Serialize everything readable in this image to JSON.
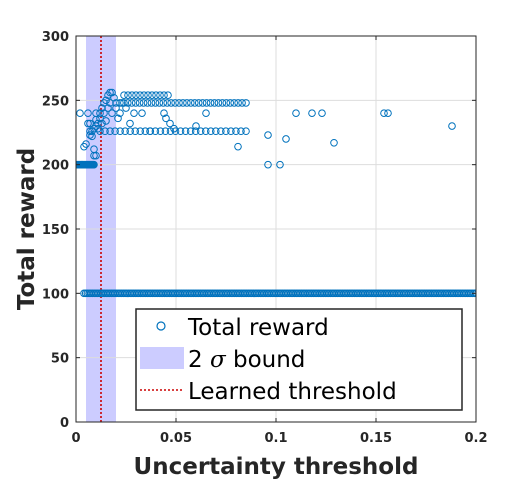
{
  "chart_data": {
    "type": "scatter",
    "xlabel": "Uncertainty threshold",
    "ylabel": "Total reward",
    "xlim": [
      0,
      0.2
    ],
    "ylim": [
      0,
      300
    ],
    "xticks": [
      0,
      0.05,
      0.1,
      0.15,
      0.2
    ],
    "xtick_labels": [
      "0",
      "0.05",
      "0.1",
      "0.15",
      "0.2"
    ],
    "yticks": [
      0,
      50,
      100,
      150,
      200,
      250,
      300
    ],
    "ytick_labels": [
      "0",
      "50",
      "100",
      "150",
      "200",
      "250",
      "300"
    ],
    "grid": true,
    "legend": {
      "placement": "bottom-right",
      "entries": [
        {
          "label_prefix": "Total reward",
          "label_symbol": "",
          "label_suffix": ""
        },
        {
          "label_prefix": "2 ",
          "label_symbol": "σ",
          "label_suffix": " bound"
        },
        {
          "label_prefix": "Learned threshold",
          "label_symbol": "",
          "label_suffix": ""
        }
      ]
    },
    "colors": {
      "points": "#0072BD",
      "band": "#CCCCFF",
      "threshold_line": "#CC0000",
      "grid": "#DDDDDD",
      "axes": "#262626"
    },
    "band": {
      "x_from": 0.005,
      "x_to": 0.02
    },
    "threshold": {
      "x": 0.0125
    },
    "series": [
      {
        "name": "Total reward",
        "marker": "open-circle",
        "clusters": [
          {
            "x_from": 0.0005,
            "x_to": 0.009,
            "y": 200,
            "n": 26
          },
          {
            "x_from": 0.004,
            "x_to": 0.2,
            "y": 100,
            "n": 230
          },
          {
            "x_from": 0.012,
            "x_to": 0.085,
            "y": 226,
            "n": 30
          },
          {
            "x_from": 0.02,
            "x_to": 0.085,
            "y": 248,
            "n": 34
          },
          {
            "x_from": 0.024,
            "x_to": 0.046,
            "y": 254,
            "n": 12
          }
        ],
        "points": [
          [
            0.002,
            240
          ],
          [
            0.003,
            200
          ],
          [
            0.004,
            214
          ],
          [
            0.005,
            216
          ],
          [
            0.006,
            240
          ],
          [
            0.006,
            232
          ],
          [
            0.007,
            232
          ],
          [
            0.007,
            223
          ],
          [
            0.007,
            226
          ],
          [
            0.008,
            226
          ],
          [
            0.008,
            222
          ],
          [
            0.009,
            228
          ],
          [
            0.009,
            207
          ],
          [
            0.009,
            212
          ],
          [
            0.01,
            207
          ],
          [
            0.01,
            230
          ],
          [
            0.01,
            235
          ],
          [
            0.01,
            240
          ],
          [
            0.011,
            228
          ],
          [
            0.011,
            232
          ],
          [
            0.012,
            236
          ],
          [
            0.012,
            240
          ],
          [
            0.013,
            244
          ],
          [
            0.013,
            232
          ],
          [
            0.014,
            248
          ],
          [
            0.014,
            240
          ],
          [
            0.015,
            250
          ],
          [
            0.015,
            234
          ],
          [
            0.016,
            254
          ],
          [
            0.016,
            244
          ],
          [
            0.017,
            256
          ],
          [
            0.017,
            248
          ],
          [
            0.018,
            256
          ],
          [
            0.018,
            240
          ],
          [
            0.019,
            252
          ],
          [
            0.02,
            244
          ],
          [
            0.021,
            236
          ],
          [
            0.022,
            240
          ],
          [
            0.023,
            248
          ],
          [
            0.025,
            244
          ],
          [
            0.027,
            232
          ],
          [
            0.029,
            240
          ],
          [
            0.033,
            240
          ],
          [
            0.037,
            226
          ],
          [
            0.044,
            240
          ],
          [
            0.045,
            236
          ],
          [
            0.047,
            232
          ],
          [
            0.049,
            228
          ],
          [
            0.06,
            230
          ],
          [
            0.065,
            240
          ],
          [
            0.081,
            214
          ],
          [
            0.096,
            223
          ],
          [
            0.096,
            200
          ],
          [
            0.102,
            200
          ],
          [
            0.105,
            220
          ],
          [
            0.11,
            240
          ],
          [
            0.118,
            240
          ],
          [
            0.123,
            240
          ],
          [
            0.129,
            217
          ],
          [
            0.154,
            240
          ],
          [
            0.156,
            240
          ],
          [
            0.188,
            230
          ]
        ]
      }
    ]
  }
}
